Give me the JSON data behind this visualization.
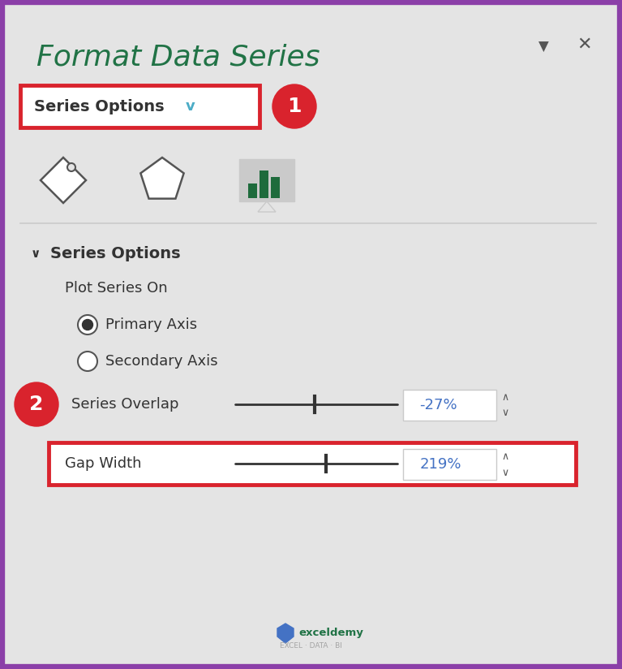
{
  "title": "Format Data Series",
  "title_color": "#217346",
  "title_fontsize": 26,
  "bg_color": "#E4E4E4",
  "border_color": "#8B3FA8",
  "series_options_label": "Series Options",
  "section_header": "Series Options",
  "plot_series_on": "Plot Series On",
  "primary_axis": "Primary Axis",
  "secondary_axis": "Secondary Axis",
  "series_overlap_label": "Series Overlap",
  "series_overlap_value": "-27%",
  "gap_width_label": "Gap Width",
  "gap_width_value": "219%",
  "red_color": "#D9232D",
  "white_color": "#FFFFFF",
  "text_color": "#333333",
  "light_gray": "#CACACA",
  "medium_gray": "#999999",
  "dark_gray": "#555555",
  "green_dark": "#1E6B3C",
  "blue_chevron": "#4BACC6",
  "slider_color": "#333333",
  "value_text_color": "#4472C4"
}
